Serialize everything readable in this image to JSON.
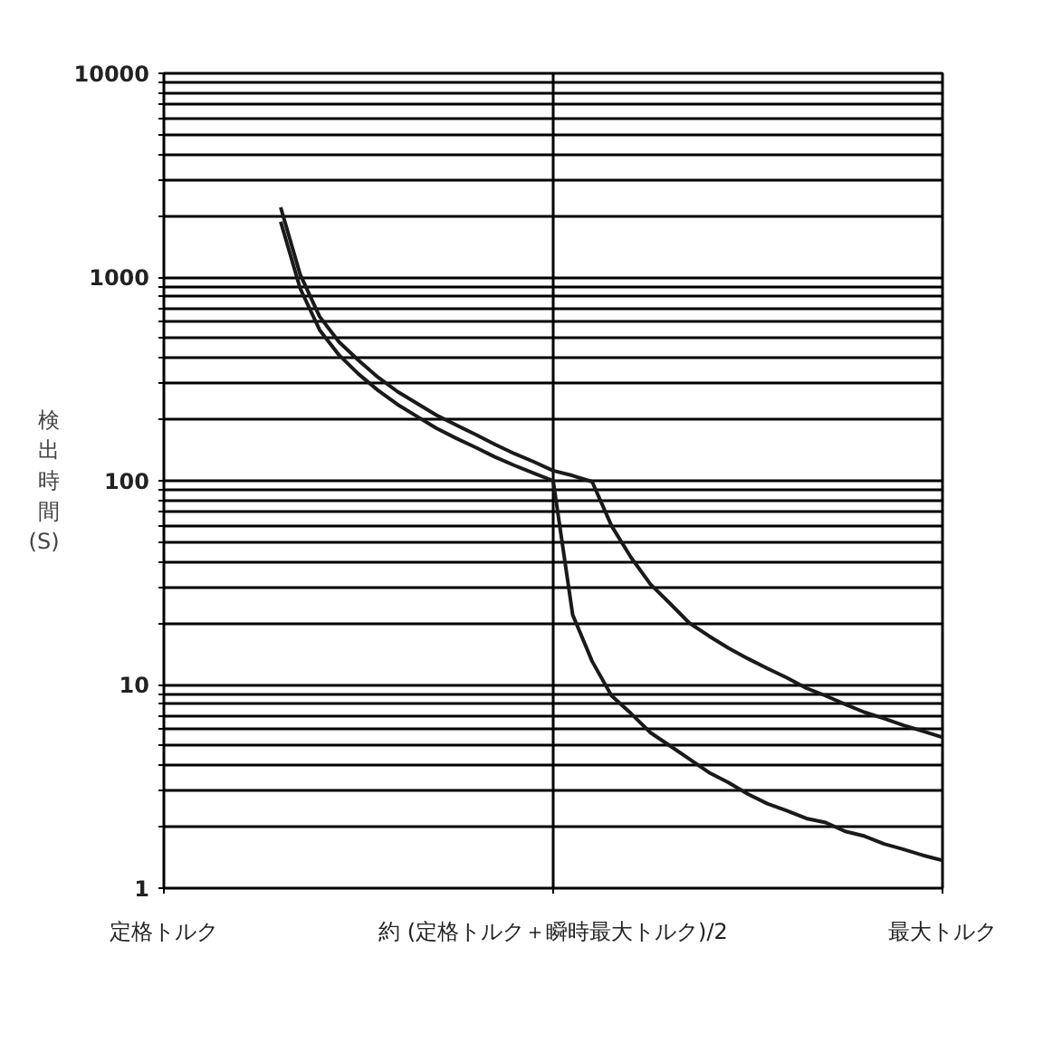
{
  "chart_data": {
    "type": "line",
    "ylabel": "検出時間 (S)",
    "log": "y",
    "grid": true,
    "line_style": "solid",
    "categories": [
      "定格トルク",
      null,
      null,
      null,
      null,
      null,
      null,
      null,
      null,
      null,
      null,
      null,
      null,
      null,
      null,
      null,
      null,
      null,
      null,
      null,
      "約 (定格トルク＋瞬時最大トルク)/2",
      null,
      null,
      null,
      null,
      null,
      null,
      null,
      null,
      null,
      null,
      null,
      null,
      null,
      null,
      null,
      null,
      null,
      null,
      null,
      "最大トルク"
    ],
    "ylim": [
      1,
      10000
    ],
    "yticks": [
      1,
      {
        "value": 2,
        "label": null
      },
      {
        "value": 3,
        "label": null
      },
      {
        "value": 4,
        "label": null
      },
      {
        "value": 5,
        "label": null
      },
      {
        "value": 6,
        "label": null
      },
      {
        "value": 7,
        "label": null
      },
      {
        "value": 8,
        "label": null
      },
      {
        "value": 9,
        "label": null
      },
      10,
      {
        "value": 20,
        "label": null
      },
      {
        "value": 30,
        "label": null
      },
      {
        "value": 40,
        "label": null
      },
      {
        "value": 50,
        "label": null
      },
      {
        "value": 60,
        "label": null
      },
      {
        "value": 70,
        "label": null
      },
      {
        "value": 80,
        "label": null
      },
      {
        "value": 90,
        "label": null
      },
      100,
      {
        "value": 200,
        "label": null
      },
      {
        "value": 300,
        "label": null
      },
      {
        "value": 400,
        "label": null
      },
      {
        "value": 500,
        "label": null
      },
      {
        "value": 600,
        "label": null
      },
      {
        "value": 700,
        "label": null
      },
      {
        "value": 800,
        "label": null
      },
      {
        "value": 900,
        "label": null
      },
      1000,
      {
        "value": 2000,
        "label": null
      },
      {
        "value": 3000,
        "label": null
      },
      {
        "value": 4000,
        "label": null
      },
      {
        "value": 5000,
        "label": null
      },
      {
        "value": 6000,
        "label": null
      },
      {
        "value": 7000,
        "label": null
      },
      {
        "value": 8000,
        "label": null
      },
      {
        "value": 9000,
        "label": null
      },
      10000
    ],
    "series": [
      {
        "color": "#1a1a1a",
        "values": [
          null,
          null,
          null,
          null,
          null,
          null,
          2200,
          1030,
          640,
          480,
          390,
          322,
          274,
          240,
          210,
          188,
          169,
          151,
          136,
          124,
          112,
          106,
          99,
          60,
          42,
          31,
          25,
          20,
          17.3,
          15.1,
          13.4,
          12,
          10.8,
          9.6,
          8.8,
          8.0,
          7.3,
          6.8,
          6.3,
          5.9,
          5.5
        ]
      },
      {
        "color": "#1a1a1a",
        "values": [
          null,
          null,
          null,
          null,
          null,
          null,
          1870,
          880,
          550,
          414,
          334,
          278,
          237,
          207,
          181,
          162,
          146,
          131,
          119,
          109,
          100,
          22,
          13,
          8.8,
          7.2,
          5.8,
          5.0,
          4.3,
          3.7,
          3.3,
          2.9,
          2.6,
          2.4,
          2.2,
          2.1,
          1.9,
          1.8,
          1.65,
          1.55,
          1.45,
          1.37
        ]
      }
    ]
  }
}
